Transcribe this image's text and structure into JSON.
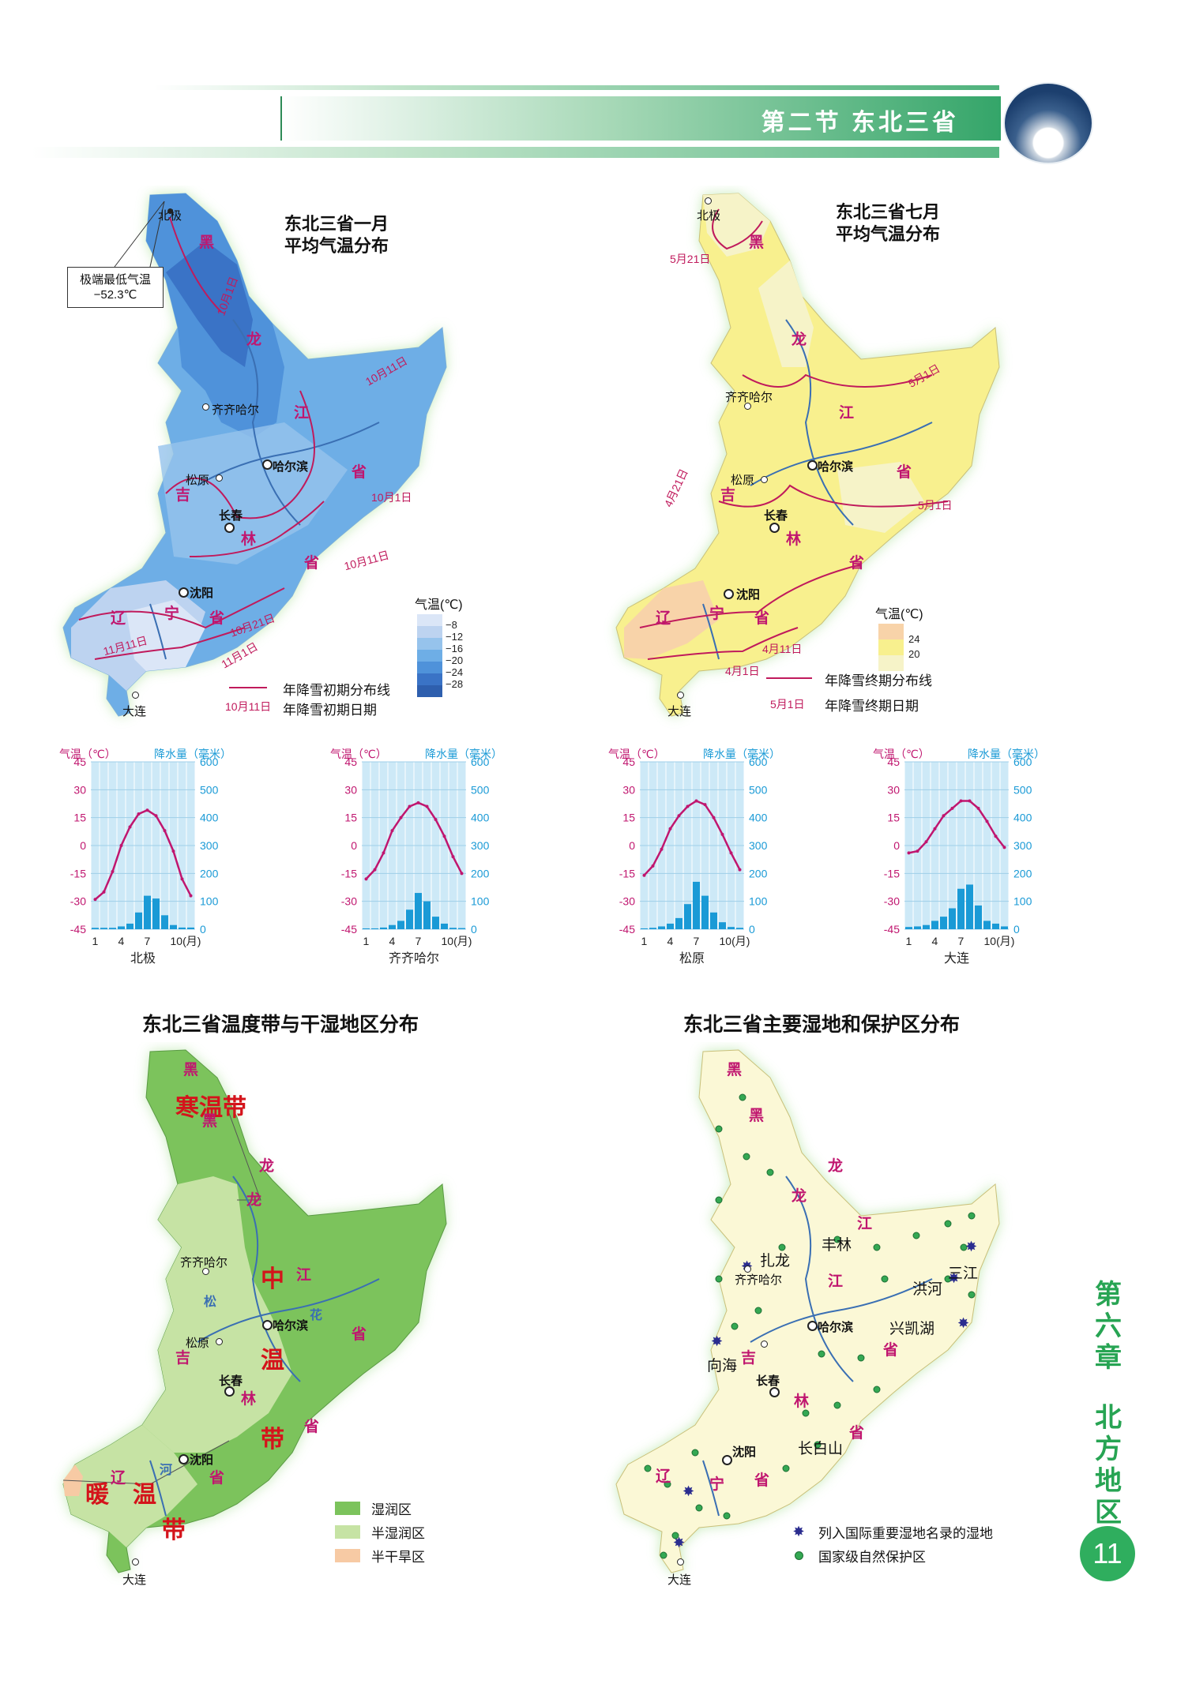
{
  "header": {
    "title": "第二节 东北三省"
  },
  "map_jan": {
    "title_line1": "东北三省一月",
    "title_line2": "平均气温分布",
    "callout_line1": "极端最低气温",
    "callout_line2": "−52.3℃",
    "places": {
      "beiji": "北极",
      "qiqihaer": "齐齐哈尔",
      "haerbin": "哈尔滨",
      "songyuan": "松原",
      "changchun": "长春",
      "shenyang": "沈阳",
      "dalian": "大连"
    },
    "snow_dates": [
      "10月1日",
      "10月11日",
      "10月1日",
      "10月11日",
      "10月21日",
      "11月11日",
      "11月1日"
    ],
    "legend_title": "气温(℃)",
    "legend_values": [
      "−8",
      "−12",
      "−16",
      "−20",
      "−24",
      "−28"
    ],
    "legend_colors": [
      "#dbe6f7",
      "#bdd3f0",
      "#96c3ec",
      "#6eaee6",
      "#4f92da",
      "#3a73c6"
    ],
    "line_legend": "年降雪初期分布线",
    "date_legend_sample": "10月11日",
    "date_legend": "年降雪初期日期"
  },
  "map_jul": {
    "title_line1": "东北三省七月",
    "title_line2": "平均气温分布",
    "places": {
      "beiji": "北极",
      "qiqihaer": "齐齐哈尔",
      "haerbin": "哈尔滨",
      "songyuan": "松原",
      "changchun": "长春",
      "shenyang": "沈阳",
      "dalian": "大连"
    },
    "snow_dates": [
      "5月21日",
      "5月1日",
      "4月21日",
      "5月1日",
      "4月11日",
      "4月1日"
    ],
    "legend_title": "气温(℃)",
    "legend_values": [
      "24",
      "20"
    ],
    "legend_colors": [
      "#f8d3a9",
      "#f8f08e",
      "#f6f3c8"
    ],
    "line_legend": "年降雪终期分布线",
    "date_legend_sample": "5月1日",
    "date_legend": "年降雪终期日期"
  },
  "provinces": {
    "hei": "黑",
    "long": "龙",
    "jiang": "江",
    "sheng": "省",
    "ji": "吉",
    "lin": "林",
    "liao": "辽",
    "ning": "宁",
    "song": "松",
    "hua": "花",
    "he": "河"
  },
  "climate_charts": {
    "temp_label": "气温（℃）",
    "precip_label": "降水量（毫米）",
    "temp_ticks": [
      "45",
      "30",
      "15",
      "0",
      "-15",
      "-30",
      "-45"
    ],
    "precip_ticks": [
      "600",
      "500",
      "400",
      "300",
      "200",
      "100",
      "0"
    ],
    "month_ticks": [
      "1",
      "4",
      "7",
      "10(月)"
    ]
  },
  "chart_data": [
    {
      "type": "bar",
      "title": "北极",
      "months": [
        1,
        2,
        3,
        4,
        5,
        6,
        7,
        8,
        9,
        10,
        11,
        12
      ],
      "series": [
        {
          "name": "降水量（毫米）",
          "values": [
            5,
            5,
            5,
            10,
            20,
            60,
            120,
            110,
            50,
            15,
            6,
            6
          ]
        },
        {
          "name": "气温（℃）",
          "values": [
            -29,
            -25,
            -14,
            0,
            10,
            17,
            19,
            16,
            8,
            -3,
            -18,
            -27
          ]
        }
      ],
      "ylim_temp": [
        -45,
        45
      ],
      "ylim_precip": [
        0,
        600
      ]
    },
    {
      "type": "bar",
      "title": "齐齐哈尔",
      "months": [
        1,
        2,
        3,
        4,
        5,
        6,
        7,
        8,
        9,
        10,
        11,
        12
      ],
      "series": [
        {
          "name": "降水量（毫米）",
          "values": [
            3,
            3,
            6,
            15,
            30,
            70,
            130,
            100,
            45,
            20,
            5,
            4
          ]
        },
        {
          "name": "气温（℃）",
          "values": [
            -18,
            -13,
            -4,
            8,
            15,
            21,
            23,
            21,
            14,
            5,
            -6,
            -15
          ]
        }
      ],
      "ylim_temp": [
        -45,
        45
      ],
      "ylim_precip": [
        0,
        600
      ]
    },
    {
      "type": "bar",
      "title": "松原",
      "months": [
        1,
        2,
        3,
        4,
        5,
        6,
        7,
        8,
        9,
        10,
        11,
        12
      ],
      "series": [
        {
          "name": "降水量（毫米）",
          "values": [
            3,
            5,
            10,
            20,
            40,
            90,
            170,
            120,
            60,
            25,
            8,
            5
          ]
        },
        {
          "name": "气温（℃）",
          "values": [
            -16,
            -11,
            -2,
            9,
            16,
            21,
            24,
            22,
            15,
            6,
            -4,
            -13
          ]
        }
      ],
      "ylim_temp": [
        -45,
        45
      ],
      "ylim_precip": [
        0,
        600
      ]
    },
    {
      "type": "bar",
      "title": "大连",
      "months": [
        1,
        2,
        3,
        4,
        5,
        6,
        7,
        8,
        9,
        10,
        11,
        12
      ],
      "series": [
        {
          "name": "降水量（毫米）",
          "values": [
            8,
            10,
            15,
            30,
            45,
            75,
            145,
            160,
            85,
            30,
            20,
            10
          ]
        },
        {
          "name": "气温（℃）",
          "values": [
            -4,
            -3,
            2,
            9,
            16,
            20,
            24,
            24,
            20,
            13,
            5,
            -1
          ]
        }
      ],
      "ylim_temp": [
        -45,
        45
      ],
      "ylim_precip": [
        0,
        600
      ]
    }
  ],
  "map_zone": {
    "title": "东北三省温度带与干湿地区分布",
    "zones": {
      "hanwen": "寒温带",
      "zhong": "中",
      "wen": "温",
      "dai": "带",
      "nuan": "暖",
      "wen2": "温",
      "dai2": "带"
    },
    "places": {
      "qiqihaer": "齐齐哈尔",
      "haerbin": "哈尔滨",
      "songyuan": "松原",
      "changchun": "长春",
      "shenyang": "沈阳",
      "dalian": "大连"
    },
    "legend": [
      {
        "label": "湿润区",
        "color": "#7cc35c"
      },
      {
        "label": "半湿润区",
        "color": "#c6e3a4"
      },
      {
        "label": "半干旱区",
        "color": "#f7caa4"
      }
    ]
  },
  "map_wetland": {
    "title": "东北三省主要湿地和保护区分布",
    "places": {
      "qiqihaer": "齐齐哈尔",
      "haerbin": "哈尔滨",
      "changchun": "长春",
      "shenyang": "沈阳",
      "dalian": "大连"
    },
    "wetlands": {
      "zhalong": "扎龙",
      "fenglin": "丰林",
      "sanjiang": "三江",
      "honghe": "洪河",
      "xingkaihu": "兴凯湖",
      "xianghai": "向海",
      "changbaishan": "长白山"
    },
    "legend": [
      {
        "label": "列入国际重要湿地名录的湿地",
        "icon": "wetland-star-icon",
        "color": "#2b2d8f"
      },
      {
        "label": "国家级自然保护区",
        "icon": "reserve-dot-icon",
        "color": "#34a853"
      }
    ]
  },
  "side": {
    "chapter": "第六章",
    "name": "北方地区"
  },
  "page_number": "11"
}
